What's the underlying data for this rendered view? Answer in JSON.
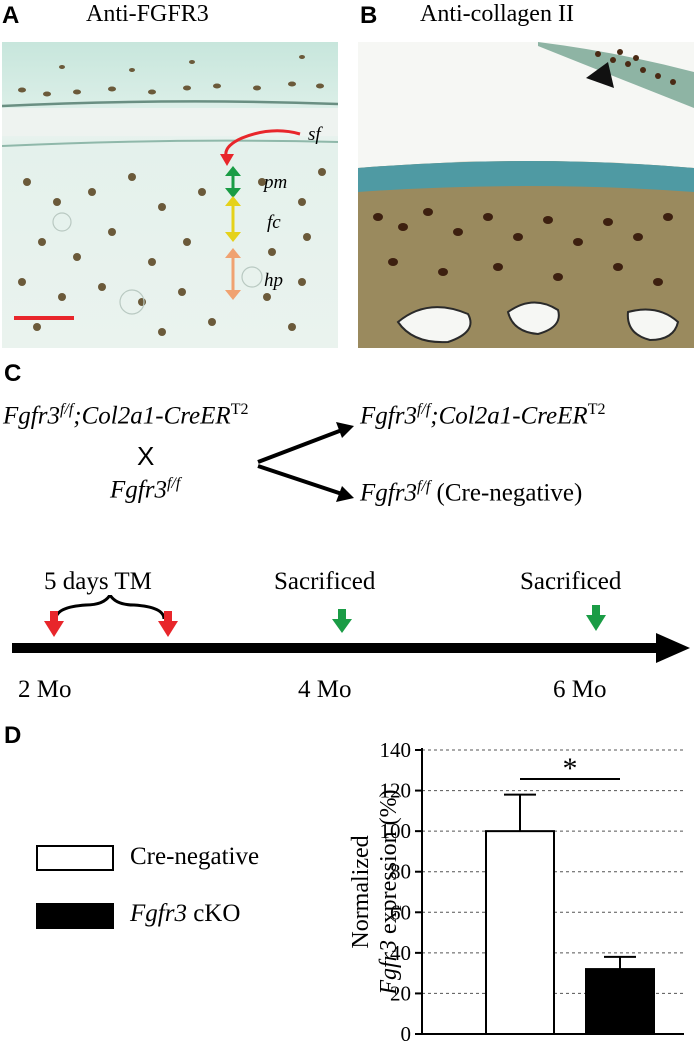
{
  "panel_a": {
    "letter": "A",
    "title": "Anti-FGFR3",
    "labels": {
      "sf": "sf",
      "pm": "pm",
      "fc": "fc",
      "hp": "hp"
    }
  },
  "panel_b": {
    "letter": "B",
    "title": "Anti-collagen II"
  },
  "panel_c": {
    "letter": "C",
    "parent1_gene": "Fgfr3",
    "parent1_geno": "f/f",
    "parent1_rest": ";Col2a1-CreER",
    "parent1_sup": "T2",
    "cross_symbol": "X",
    "parent2_gene": "Fgfr3",
    "parent2_geno": "f/f",
    "offspring1_gene": "Fgfr3",
    "offspring1_geno": "f/f",
    "offspring1_rest": ";Col2a1-CreER",
    "offspring1_sup": "T2",
    "offspring2_gene": "Fgfr3",
    "offspring2_geno": "f/f",
    "offspring2_note": "(Cre-negative)",
    "timeline": {
      "tm_label": "5 days TM",
      "sacrificed_1": "Sacrificed",
      "sacrificed_2": "Sacrificed",
      "t1": "2 Mo",
      "t2": "4 Mo",
      "t3": "6 Mo"
    },
    "colors": {
      "tm_arrow": "#e8262b",
      "sacrifice_arrow": "#1a9c45"
    }
  },
  "panel_d": {
    "letter": "D",
    "legend": {
      "item1": "Cre-negative",
      "item2_gene": "Fgfr3",
      "item2_rest": " cKO"
    },
    "significance": "*"
  },
  "chart_data": {
    "type": "bar",
    "categories": [
      "Cre-negative",
      "Fgfr3 cKO"
    ],
    "values": [
      100,
      32
    ],
    "errors": [
      18,
      6
    ],
    "ylabel_line1": "Normalized",
    "ylabel_gene": "Fgfr3",
    "ylabel_rest": " expression (%)",
    "ylim": [
      0,
      140
    ],
    "yticks": [
      "0",
      "20",
      "40",
      "60",
      "80",
      "100",
      "120",
      "140"
    ],
    "grid": "dashed",
    "fills": [
      "#ffffff",
      "#000000"
    ]
  }
}
